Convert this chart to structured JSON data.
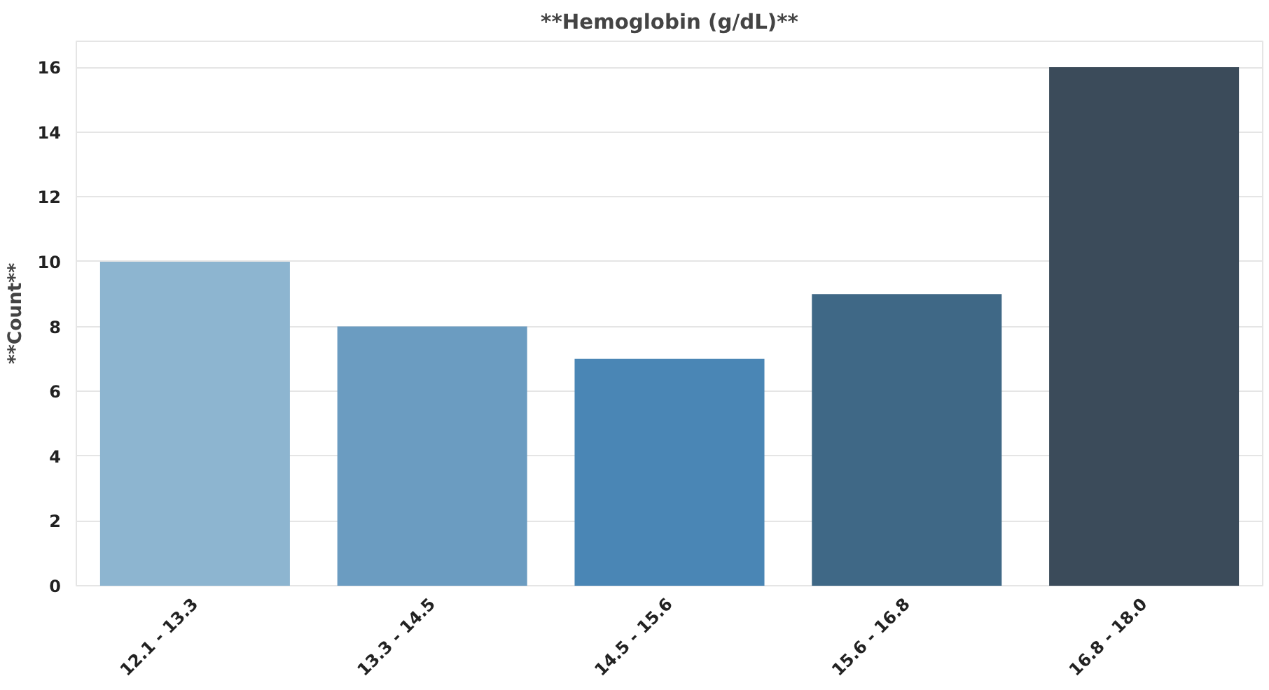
{
  "chart_data": {
    "type": "bar",
    "title": "**Hemoglobin (g/dL)**",
    "ylabel": "**Count**",
    "categories": [
      "12.1 - 13.3",
      "13.3 - 14.5",
      "14.5 - 15.6",
      "15.6 - 16.8",
      "16.8 - 18.0"
    ],
    "values": [
      10,
      8,
      7,
      9,
      16
    ],
    "colors": [
      "#8db5d0",
      "#6b9cc1",
      "#4a86b5",
      "#3f6886",
      "#3b4b5a"
    ],
    "ylim": [
      0,
      16.8
    ],
    "yticks": [
      0,
      2,
      4,
      6,
      8,
      10,
      12,
      14,
      16
    ],
    "grid": "y"
  }
}
